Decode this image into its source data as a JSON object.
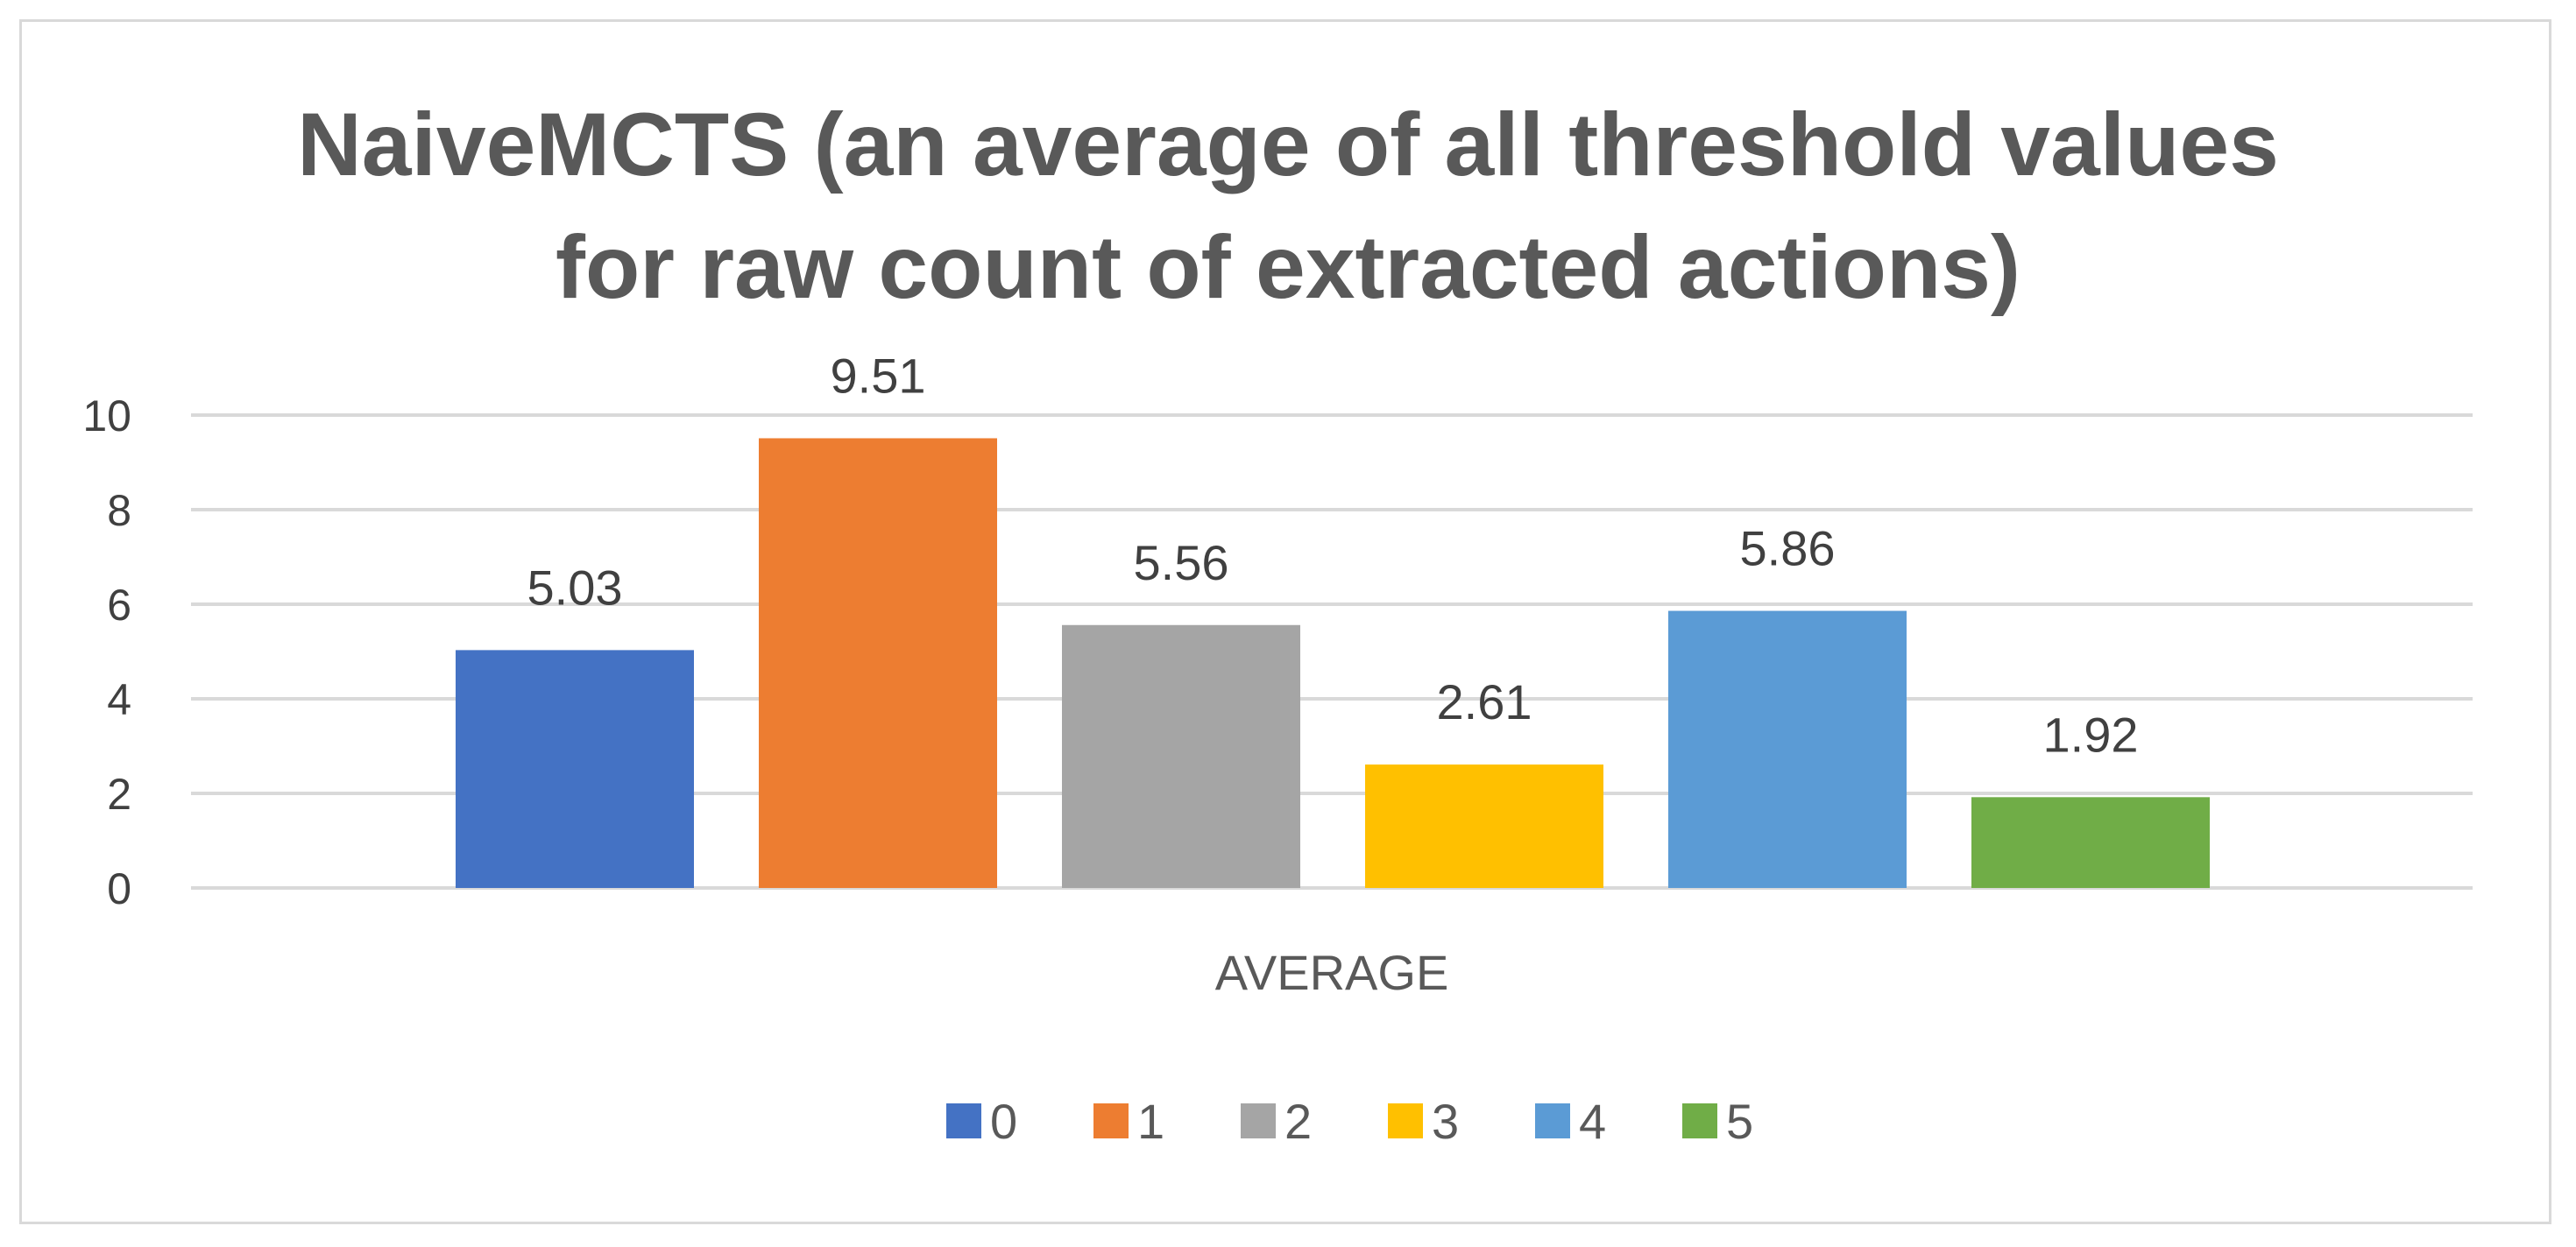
{
  "chart_data": {
    "type": "bar",
    "title_lines": [
      "NaiveMCTS (an average of all threshold values",
      "for raw count of extracted actions)"
    ],
    "categories": [
      "AVERAGE"
    ],
    "series": [
      {
        "name": "0",
        "values": [
          5.03
        ],
        "label": "5.03",
        "color": "#4472C4"
      },
      {
        "name": "1",
        "values": [
          9.51
        ],
        "label": "9.51",
        "color": "#ED7D31"
      },
      {
        "name": "2",
        "values": [
          5.56
        ],
        "label": "5.56",
        "color": "#A5A5A5"
      },
      {
        "name": "3",
        "values": [
          2.61
        ],
        "label": "2.61",
        "color": "#FFC000"
      },
      {
        "name": "4",
        "values": [
          5.86
        ],
        "label": "5.86",
        "color": "#5B9BD5"
      },
      {
        "name": "5",
        "values": [
          1.92
        ],
        "label": "1.92",
        "color": "#70AD47"
      }
    ],
    "y_ticks": [
      "0",
      "2",
      "4",
      "6",
      "8",
      "10"
    ],
    "ylim": [
      0,
      10
    ],
    "xlabel": "",
    "ylabel": "",
    "grid": true,
    "legend_position": "bottom",
    "gridline_color": "#D9D9D9",
    "frame_color": "#D9D9D9"
  }
}
